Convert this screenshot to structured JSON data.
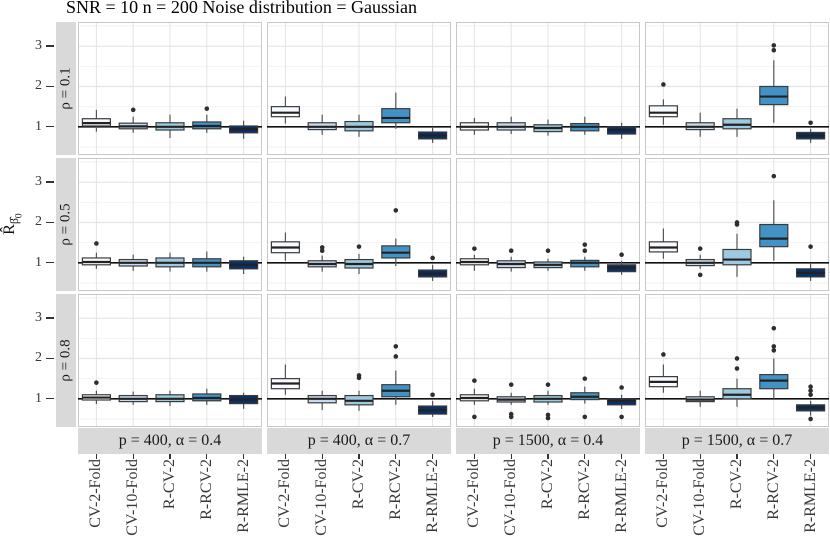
{
  "title": "SNR = 10 n = 200 Noise distribution = Gaussian",
  "chart_data": {
    "type": "boxplot",
    "title": "SNR = 10 n = 200 Noise distribution = Gaussian",
    "ylabel_main": "R̂",
    "ylabel_sub": "β̂",
    "ylabel_subsub": "0",
    "categories": [
      "CV-2-Fold",
      "CV-10-Fold",
      "R-CV-2",
      "R-RCV-2",
      "R-RMLE-2"
    ],
    "row_facets": [
      "ρ = 0.1",
      "ρ = 0.5",
      "ρ = 0.8"
    ],
    "col_facets": [
      "p = 400, α = 0.4",
      "p = 400, α = 0.7",
      "p = 1500, α = 0.4",
      "p = 1500, α = 0.7"
    ],
    "yticks": [
      1,
      2,
      3
    ],
    "ylim": [
      0.3,
      3.6
    ],
    "ref_line": 1,
    "grid": "major+minor",
    "legend": "none",
    "colors": {
      "box_fills": [
        "#F7FBFF",
        "#C6DBEF",
        "#9ECAE1",
        "#4292C6",
        "#08306B"
      ],
      "box_stroke": "#3b3b3b",
      "whisker": "#555555",
      "median": "#222222",
      "outlier": "#2e2e2e",
      "strip_bg": "#d9d9d9",
      "ref_line": "#111111",
      "grid_major": "#e4e4e4",
      "grid_minor": "#f2f2f2",
      "panel_border": "#c8c8c8"
    },
    "box_format": [
      "low",
      "q1",
      "median",
      "q3",
      "high",
      "outliers"
    ],
    "panels": [
      [
        [
          [
            0.88,
            1.02,
            1.09,
            1.2,
            1.42,
            []
          ],
          [
            0.85,
            0.95,
            1.01,
            1.09,
            1.25,
            [
              1.42
            ]
          ],
          [
            0.72,
            0.92,
            1.0,
            1.1,
            1.3,
            []
          ],
          [
            0.85,
            0.95,
            1.02,
            1.12,
            1.3,
            [
              1.45
            ]
          ],
          [
            0.7,
            0.85,
            0.94,
            1.02,
            1.15,
            []
          ]
        ],
        [
          [
            1.08,
            1.25,
            1.35,
            1.5,
            1.75,
            []
          ],
          [
            0.8,
            0.93,
            1.0,
            1.1,
            1.3,
            []
          ],
          [
            0.75,
            0.9,
            1.0,
            1.13,
            1.3,
            []
          ],
          [
            0.95,
            1.1,
            1.22,
            1.45,
            1.85,
            []
          ],
          [
            0.6,
            0.7,
            0.78,
            0.87,
            1.0,
            []
          ]
        ],
        [
          [
            0.8,
            0.92,
            1.0,
            1.1,
            1.22,
            []
          ],
          [
            0.82,
            0.92,
            1.0,
            1.1,
            1.25,
            []
          ],
          [
            0.78,
            0.88,
            0.97,
            1.05,
            1.18,
            []
          ],
          [
            0.8,
            0.9,
            1.0,
            1.08,
            1.25,
            []
          ],
          [
            0.7,
            0.82,
            0.92,
            1.0,
            1.1,
            []
          ]
        ],
        [
          [
            1.05,
            1.25,
            1.35,
            1.52,
            1.68,
            [
              2.05
            ]
          ],
          [
            0.75,
            0.93,
            1.0,
            1.1,
            1.35,
            []
          ],
          [
            0.75,
            0.95,
            1.05,
            1.2,
            1.45,
            []
          ],
          [
            1.1,
            1.55,
            1.75,
            2.0,
            2.65,
            [
              2.9,
              3.02
            ]
          ],
          [
            0.6,
            0.7,
            0.78,
            0.86,
            0.95,
            [
              1.1
            ]
          ]
        ]
      ],
      [
        [
          [
            0.85,
            0.95,
            1.02,
            1.12,
            1.25,
            [
              1.48
            ]
          ],
          [
            0.8,
            0.92,
            1.0,
            1.08,
            1.2,
            []
          ],
          [
            0.78,
            0.9,
            1.0,
            1.12,
            1.25,
            []
          ],
          [
            0.78,
            0.9,
            1.0,
            1.1,
            1.28,
            []
          ],
          [
            0.72,
            0.85,
            0.95,
            1.05,
            1.15,
            []
          ]
        ],
        [
          [
            1.05,
            1.25,
            1.38,
            1.52,
            1.75,
            []
          ],
          [
            0.78,
            0.9,
            0.97,
            1.05,
            1.18,
            [
              1.3,
              1.38
            ]
          ],
          [
            0.72,
            0.87,
            0.97,
            1.08,
            1.22,
            [
              1.4
            ]
          ],
          [
            0.92,
            1.12,
            1.25,
            1.42,
            1.6,
            [
              2.3
            ]
          ],
          [
            0.55,
            0.65,
            0.73,
            0.82,
            0.95,
            [
              1.12
            ]
          ]
        ],
        [
          [
            0.8,
            0.95,
            1.02,
            1.1,
            1.2,
            [
              1.35
            ]
          ],
          [
            0.78,
            0.88,
            0.97,
            1.05,
            1.15,
            [
              1.3
            ]
          ],
          [
            0.8,
            0.88,
            0.95,
            1.02,
            1.1,
            [
              1.3
            ]
          ],
          [
            0.8,
            0.9,
            1.0,
            1.06,
            1.15,
            [
              1.3,
              1.45
            ]
          ],
          [
            0.7,
            0.78,
            0.88,
            0.95,
            1.05,
            [
              1.2
            ]
          ]
        ],
        [
          [
            1.1,
            1.27,
            1.38,
            1.52,
            1.85,
            []
          ],
          [
            0.85,
            0.93,
            1.0,
            1.08,
            1.2,
            [
              1.35,
              0.7
            ]
          ],
          [
            0.65,
            0.95,
            1.08,
            1.33,
            1.72,
            [
              1.95,
              2.0
            ]
          ],
          [
            1.05,
            1.4,
            1.6,
            1.95,
            2.55,
            [
              3.15
            ]
          ],
          [
            0.55,
            0.65,
            0.75,
            0.85,
            1.0,
            [
              1.4
            ]
          ]
        ]
      ],
      [
        [
          [
            0.87,
            0.97,
            1.03,
            1.1,
            1.2,
            [
              1.4
            ]
          ],
          [
            0.85,
            0.93,
            1.0,
            1.08,
            1.18,
            []
          ],
          [
            0.82,
            0.93,
            1.0,
            1.1,
            1.2,
            []
          ],
          [
            0.85,
            0.95,
            1.02,
            1.12,
            1.25,
            []
          ],
          [
            0.75,
            0.88,
            0.98,
            1.08,
            1.15,
            []
          ]
        ],
        [
          [
            1.1,
            1.25,
            1.38,
            1.5,
            1.85,
            []
          ],
          [
            0.72,
            0.9,
            1.0,
            1.08,
            1.2,
            []
          ],
          [
            0.7,
            0.85,
            0.95,
            1.08,
            1.2,
            [
              1.52,
              1.58
            ]
          ],
          [
            0.85,
            1.05,
            1.2,
            1.35,
            1.7,
            [
              2.05,
              2.3
            ]
          ],
          [
            0.55,
            0.62,
            0.72,
            0.82,
            0.95,
            [
              1.1
            ]
          ]
        ],
        [
          [
            0.85,
            0.95,
            1.02,
            1.1,
            1.25,
            [
              1.45,
              0.55
            ]
          ],
          [
            0.85,
            0.92,
            0.98,
            1.05,
            1.15,
            [
              1.35,
              0.62,
              0.55
            ]
          ],
          [
            0.85,
            0.92,
            1.0,
            1.08,
            1.2,
            [
              1.35,
              0.6,
              0.52
            ]
          ],
          [
            0.88,
            0.98,
            1.05,
            1.15,
            1.3,
            [
              1.5,
              0.55
            ]
          ],
          [
            0.75,
            0.85,
            0.95,
            1.0,
            1.1,
            [
              1.28,
              0.55
            ]
          ]
        ],
        [
          [
            1.15,
            1.3,
            1.42,
            1.55,
            1.85,
            [
              2.1
            ]
          ],
          [
            0.8,
            0.93,
            0.98,
            1.05,
            1.2,
            []
          ],
          [
            0.8,
            1.0,
            1.1,
            1.25,
            1.5,
            [
              1.75,
              2.0
            ]
          ],
          [
            1.0,
            1.25,
            1.45,
            1.6,
            2.0,
            [
              2.2,
              2.3,
              2.75
            ]
          ],
          [
            0.58,
            0.7,
            0.78,
            0.85,
            0.95,
            [
              1.1,
              1.2,
              1.3,
              0.5
            ]
          ]
        ]
      ]
    ]
  }
}
